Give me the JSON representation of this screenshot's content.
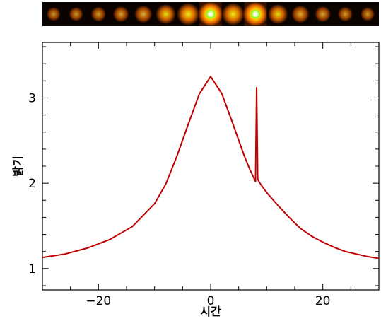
{
  "chart_data": {
    "type": "line",
    "title": "",
    "xlabel": "시간",
    "ylabel": "밝기",
    "xlim": [
      -30,
      30
    ],
    "ylim": [
      0.75,
      3.65
    ],
    "x_ticks": [
      -20,
      0,
      20
    ],
    "x_tick_labels": [
      "−20",
      "0",
      "20"
    ],
    "y_ticks": [
      1,
      2,
      3
    ],
    "y_tick_labels": [
      "1",
      "2",
      "3"
    ],
    "grid": false,
    "legend": "none",
    "series": [
      {
        "color": "#c00000",
        "x": [
          -30,
          -26,
          -22,
          -18,
          -14,
          -10,
          -8,
          -6,
          -4,
          -2,
          0,
          2,
          4,
          6,
          7,
          8,
          8.2,
          8.4,
          8.6,
          8.8,
          9,
          10,
          12,
          14,
          16,
          18,
          20,
          22,
          24,
          26,
          28,
          30
        ],
        "y": [
          1.13,
          1.17,
          1.24,
          1.34,
          1.49,
          1.76,
          1.99,
          2.32,
          2.69,
          3.05,
          3.25,
          3.05,
          2.69,
          2.32,
          2.16,
          2.02,
          3.12,
          2.05,
          2.02,
          2.0,
          1.98,
          1.89,
          1.74,
          1.6,
          1.47,
          1.38,
          1.31,
          1.25,
          1.2,
          1.17,
          1.14,
          1.12
        ]
      }
    ],
    "image_strip": {
      "frames": 15,
      "frame_brightness": [
        0.3,
        0.32,
        0.36,
        0.42,
        0.52,
        0.66,
        0.8,
        1.0,
        0.8,
        1.0,
        0.66,
        0.52,
        0.42,
        0.36,
        0.32
      ]
    }
  }
}
